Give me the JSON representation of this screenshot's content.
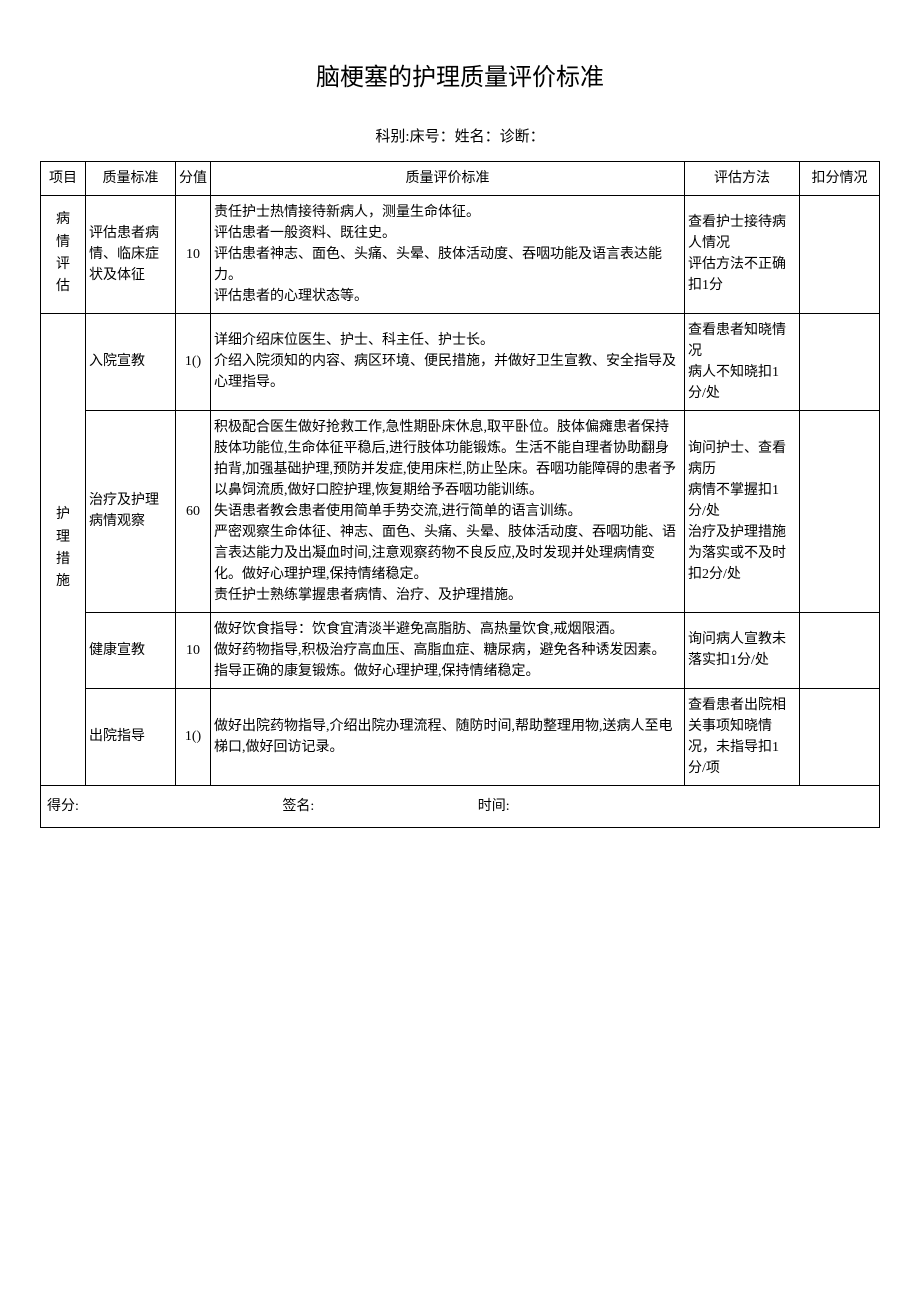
{
  "title": "脑梗塞的护理质量评价标准",
  "subtitle": "科别:床号：姓名：诊断：",
  "headers": {
    "category": "项目",
    "standard": "质量标准",
    "score": "分值",
    "criteria": "质量评价标准",
    "method": "评估方法",
    "deduction": "扣分情况"
  },
  "section1": {
    "category": "病情评估",
    "row1": {
      "standard": "评估患者病情、临床症状及体征",
      "score": "10",
      "criteria": "责任护士热情接待新病人，测量生命体征。\n评估患者一般资料、既往史。\n评估患者神志、面色、头痛、头晕、肢体活动度、吞咽功能及语言表达能力。\n评估患者的心理状态等。",
      "method": "查看护士接待病人情况\n评估方法不正确扣1分"
    }
  },
  "section2": {
    "category": "护理措施",
    "row1": {
      "standard": "入院宣教",
      "score": "1()",
      "criteria": "详细介绍床位医生、护士、科主任、护士长。\n介绍入院须知的内容、病区环境、便民措施，并做好卫生宣教、安全指导及心理指导。",
      "method": "查看患者知晓情况\n病人不知晓扣1分/处"
    },
    "row2": {
      "standard": "治疗及护理病情观察",
      "score": "60",
      "criteria": "积极配合医生做好抢救工作,急性期卧床休息,取平卧位。肢体偏瘫患者保持肢体功能位,生命体征平稳后,进行肢体功能锻炼。生活不能自理者协助翻身拍背,加强基础护理,预防并发症,使用床栏,防止坠床。吞咽功能障碍的患者予以鼻饲流质,做好口腔护理,恢复期给予吞咽功能训练。\n失语患者教会患者使用简单手势交流,进行简单的语言训练。\n严密观察生命体征、神志、面色、头痛、头晕、肢体活动度、吞咽功能、语言表达能力及出凝血时间,注意观察药物不良反应,及时发现并处理病情变化。做好心理护理,保持情绪稳定。\n责任护士熟练掌握患者病情、治疗、及护理措施。",
      "method": "询问护士、查看病历\n病情不掌握扣1分/处\n治疗及护理措施为落实或不及时扣2分/处"
    },
    "row3": {
      "standard": "健康宣教",
      "score": "10",
      "criteria": "做好饮食指导：饮食宜清淡半避免高脂肪、高热量饮食,戒烟限酒。\n做好药物指导,积极治疗高血压、高脂血症、糖尿病，避免各种诱发因素。\n指导正确的康复锻炼。做好心理护理,保持情绪稳定。",
      "method": "询问病人宣教未落实扣1分/处"
    },
    "row4": {
      "standard": "出院指导",
      "score": "1()",
      "criteria": "做好出院药物指导,介绍出院办理流程、随防时间,帮助整理用物,送病人至电梯口,做好回访记录。",
      "method": "查看患者出院相关事项知晓情况，未指导扣1分/项"
    }
  },
  "footer": {
    "score_label": "得分:",
    "signature_label": "签名:",
    "time_label": "时间:"
  }
}
